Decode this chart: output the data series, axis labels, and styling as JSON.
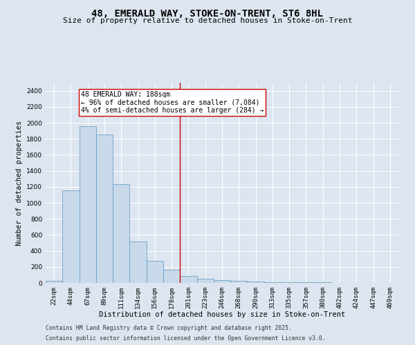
{
  "title_line1": "48, EMERALD WAY, STOKE-ON-TRENT, ST6 8HL",
  "title_line2": "Size of property relative to detached houses in Stoke-on-Trent",
  "xlabel": "Distribution of detached houses by size in Stoke-on-Trent",
  "ylabel": "Number of detached properties",
  "categories": [
    "22sqm",
    "44sqm",
    "67sqm",
    "89sqm",
    "111sqm",
    "134sqm",
    "156sqm",
    "178sqm",
    "201sqm",
    "223sqm",
    "246sqm",
    "268sqm",
    "290sqm",
    "313sqm",
    "335sqm",
    "357sqm",
    "380sqm",
    "402sqm",
    "424sqm",
    "447sqm",
    "469sqm"
  ],
  "values": [
    22,
    1155,
    1960,
    1850,
    1235,
    520,
    275,
    160,
    85,
    50,
    32,
    28,
    18,
    10,
    8,
    5,
    5,
    4,
    3,
    3,
    3
  ],
  "bar_color": "#c8daea",
  "bar_edge_color": "#6a9fc8",
  "vline_x": 7.5,
  "vline_color": "#cc0000",
  "annotation_text": "48 EMERALD WAY: 188sqm\n← 96% of detached houses are smaller (7,084)\n4% of semi-detached houses are larger (284) →",
  "annotation_box_color": "#ffffff",
  "annotation_box_edge": "#cc0000",
  "ylim": [
    0,
    2500
  ],
  "yticks": [
    0,
    200,
    400,
    600,
    800,
    1000,
    1200,
    1400,
    1600,
    1800,
    2000,
    2200,
    2400
  ],
  "background_color": "#dde6f0",
  "footer_line1": "Contains HM Land Registry data © Crown copyright and database right 2025.",
  "footer_line2": "Contains public sector information licensed under the Open Government Licence v3.0.",
  "title_fontsize": 10,
  "subtitle_fontsize": 8,
  "axis_label_fontsize": 7.5,
  "tick_fontsize": 6.5,
  "annotation_fontsize": 7,
  "footer_fontsize": 5.8
}
